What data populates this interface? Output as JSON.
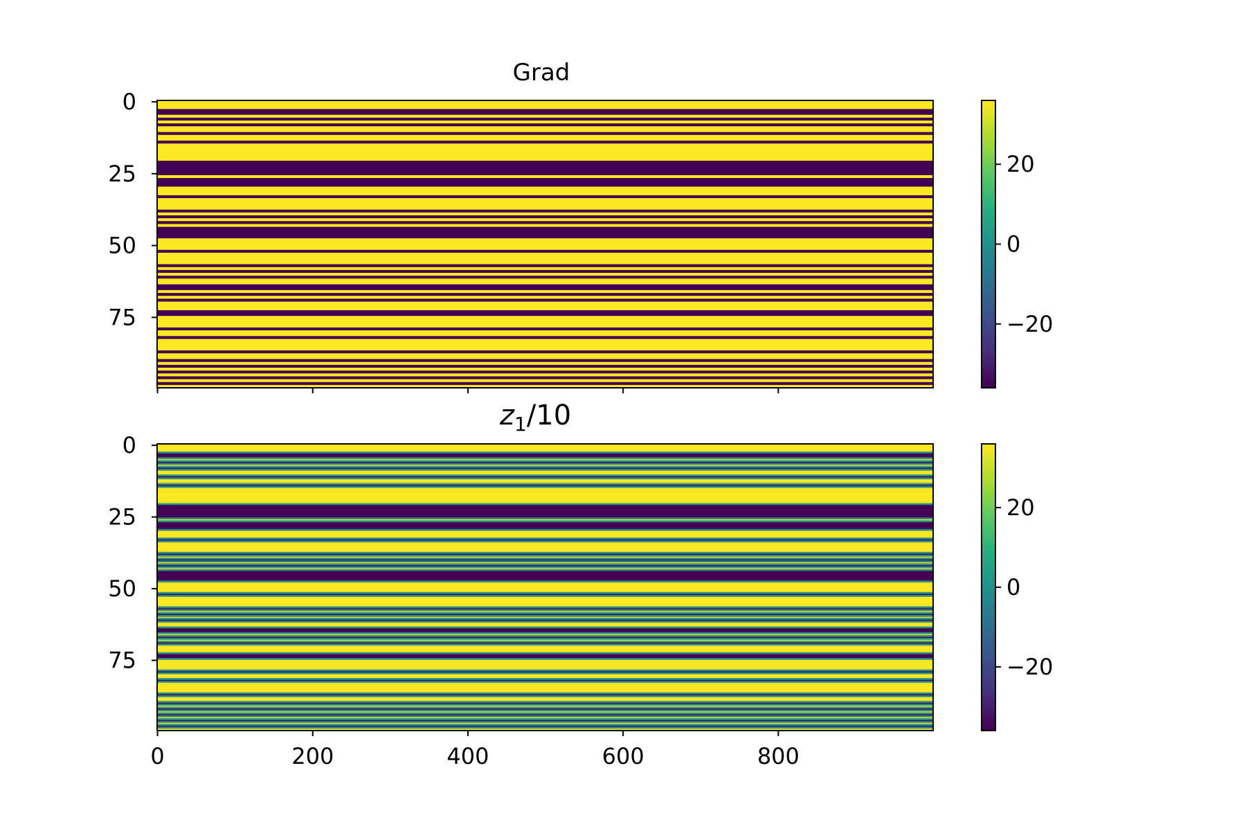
{
  "chart_data": [
    {
      "type": "heatmap",
      "title": "Grad",
      "shape": [
        100,
        1000
      ],
      "xlim": [
        0,
        1000
      ],
      "ylim": [
        100,
        0
      ],
      "x_tick_values": [
        0,
        200,
        400,
        600,
        800
      ],
      "x_tick_labels": [],
      "y_tick_values": [
        0,
        25,
        50,
        75
      ],
      "y_tick_labels": [
        "0",
        "25",
        "50",
        "75"
      ],
      "colormap": "viridis",
      "colorbar": {
        "vmin": -36,
        "vmax": 36,
        "tick_values": [
          20,
          0,
          -20
        ],
        "tick_labels": [
          "20",
          "0",
          "−20"
        ]
      },
      "row_values": [
        36,
        36,
        36,
        -36,
        -36,
        36,
        -36,
        36,
        -36,
        36,
        36,
        -36,
        36,
        36,
        -36,
        36,
        36,
        36,
        36,
        36,
        36,
        -36,
        -36,
        -36,
        -36,
        -36,
        36,
        -36,
        -36,
        -36,
        36,
        36,
        36,
        -36,
        36,
        36,
        36,
        36,
        -36,
        36,
        -36,
        36,
        -36,
        36,
        -36,
        -36,
        -36,
        -36,
        36,
        36,
        36,
        36,
        -36,
        36,
        36,
        36,
        36,
        -36,
        36,
        -36,
        36,
        -36,
        36,
        36,
        -36,
        -36,
        36,
        -36,
        36,
        -36,
        36,
        36,
        36,
        -36,
        -36,
        36,
        36,
        36,
        36,
        -36,
        36,
        36,
        -36,
        36,
        36,
        36,
        36,
        -36,
        36,
        36,
        -36,
        36,
        -36,
        36,
        -36,
        36,
        -36,
        36,
        -36,
        36
      ]
    },
    {
      "type": "heatmap",
      "title": "z1/10",
      "title_parts": [
        "z",
        "1",
        "/10"
      ],
      "shape": [
        100,
        1000
      ],
      "xlim": [
        0,
        1000
      ],
      "ylim": [
        100,
        0
      ],
      "x_tick_values": [
        0,
        200,
        400,
        600,
        800
      ],
      "x_tick_labels": [
        "0",
        "200",
        "400",
        "600",
        "800"
      ],
      "y_tick_values": [
        0,
        25,
        50,
        75
      ],
      "y_tick_labels": [
        "0",
        "25",
        "50",
        "75"
      ],
      "colormap": "viridis",
      "colorbar": {
        "vmin": -36,
        "vmax": 36,
        "tick_values": [
          20,
          0,
          -20
        ],
        "tick_labels": [
          "20",
          "0",
          "−20"
        ]
      },
      "row_values": [
        36,
        36,
        36,
        -36,
        -36,
        36,
        -36,
        36,
        -36,
        36,
        36,
        -36,
        36,
        36,
        -36,
        36,
        36,
        36,
        36,
        36,
        36,
        -36,
        -36,
        -36,
        -36,
        -36,
        36,
        -36,
        -36,
        -36,
        36,
        36,
        36,
        -36,
        36,
        36,
        36,
        36,
        -36,
        36,
        -36,
        36,
        -36,
        36,
        -36,
        -36,
        -36,
        -36,
        36,
        36,
        36,
        36,
        -36,
        36,
        36,
        36,
        36,
        -36,
        36,
        -36,
        36,
        -36,
        36,
        36,
        -36,
        -36,
        36,
        -36,
        36,
        -36,
        36,
        36,
        36,
        -36,
        -36,
        36,
        36,
        36,
        36,
        -36,
        36,
        36,
        -36,
        36,
        36,
        36,
        36,
        -36,
        36,
        36,
        -36,
        36,
        -36,
        36,
        -36,
        36,
        -36,
        36,
        -36,
        36
      ]
    }
  ]
}
